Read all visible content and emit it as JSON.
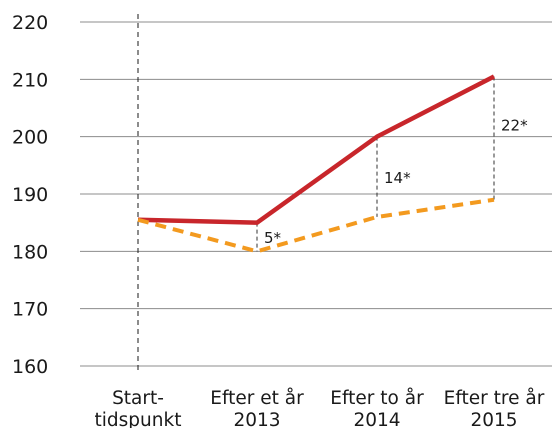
{
  "chart_data": {
    "type": "line",
    "categories": [
      [
        "Start-",
        "tidspunkt"
      ],
      [
        "Efter et år",
        "2013"
      ],
      [
        "Efter to år",
        "2014"
      ],
      [
        "Efter tre år",
        "2015"
      ]
    ],
    "yticks": [
      "160",
      "170",
      "180",
      "190",
      "200",
      "210",
      "220"
    ],
    "ylim": [
      160,
      220
    ],
    "grid": true,
    "series": [
      {
        "values": [
          185.5,
          185,
          200,
          210.5
        ],
        "color": "#c8262b",
        "style": "solid"
      },
      {
        "values": [
          185.5,
          180,
          186,
          189
        ],
        "color": "#f39a1f",
        "style": "dashed"
      }
    ],
    "reference_line": {
      "category_index": 0,
      "style": "dashed"
    },
    "annotations": [
      {
        "category_index": 1,
        "label": "5*"
      },
      {
        "category_index": 2,
        "label": "14*"
      },
      {
        "category_index": 3,
        "label": "22*"
      }
    ]
  }
}
